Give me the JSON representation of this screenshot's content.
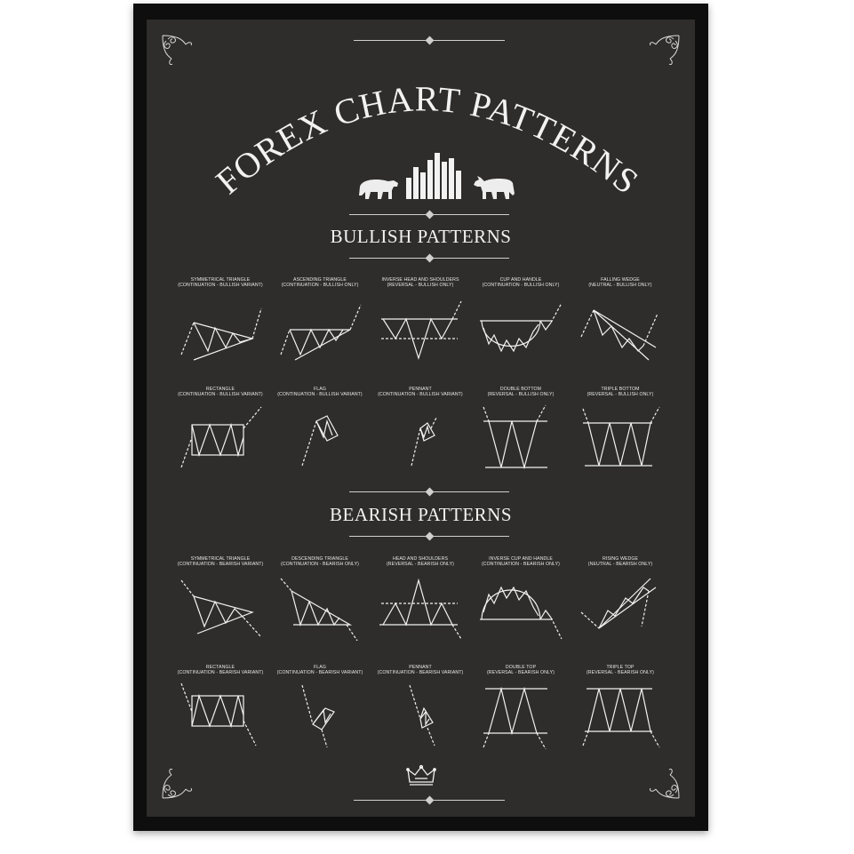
{
  "poster": {
    "title": "FOREX CHART PATTERNS",
    "colors": {
      "background": "#2e2d2c",
      "frame": "#0e0e0e",
      "ink": "#f2f2f2"
    },
    "icons": [
      "bear-icon",
      "bar-chart-icon",
      "bull-icon",
      "crown-icon",
      "corner-ornament-icon"
    ]
  },
  "bullish": {
    "heading": "BULLISH PATTERNS",
    "patterns": [
      {
        "id": "sym-triangle",
        "name": "SYMMETRICAL TRIANGLE",
        "note": "(CONTINUATION - BULLISH VARIANT)"
      },
      {
        "id": "asc-triangle",
        "name": "ASCENDING TRIANGLE",
        "note": "(CONTINUATION - BULLISH ONLY)"
      },
      {
        "id": "inv-hs",
        "name": "INVERSE HEAD AND SHOULDERS",
        "note": "(REVERSAL - BULLISH ONLY)"
      },
      {
        "id": "cup-handle",
        "name": "CUP AND HANDLE",
        "note": "(CONTINUATION - BULLISH ONLY)"
      },
      {
        "id": "falling-wedge",
        "name": "FALLING WEDGE",
        "note": "(NEUTRAL - BULLISH ONLY)"
      },
      {
        "id": "rectangle",
        "name": "RECTANGLE",
        "note": "(CONTINUATION - BULLISH VARIANT)"
      },
      {
        "id": "flag",
        "name": "FLAG",
        "note": "(CONTINUATION - BULLISH VARIANT)"
      },
      {
        "id": "pennant",
        "name": "PENNANT",
        "note": "(CONTINUATION - BULLISH VARIANT)"
      },
      {
        "id": "double-bottom",
        "name": "DOUBLE BOTTOM",
        "note": "(REVERSAL - BULLISH ONLY)"
      },
      {
        "id": "triple-bottom",
        "name": "TRIPLE BOTTOM",
        "note": "(REVERSAL - BULLISH ONLY)"
      }
    ]
  },
  "bearish": {
    "heading": "BEARISH PATTERNS",
    "patterns": [
      {
        "id": "sym-triangle",
        "name": "SYMMETRICAL TRIANGLE",
        "note": "(CONTINUATION - BEARISH VARIANT)"
      },
      {
        "id": "desc-triangle",
        "name": "DESCENDING TRIANGLE",
        "note": "(CONTINUATION - BEARISH ONLY)"
      },
      {
        "id": "hs",
        "name": "HEAD AND SHOULDERS",
        "note": "(REVERSAL - BEARISH ONLY)"
      },
      {
        "id": "inv-cup-handle",
        "name": "INVERSE CUP AND HANDLE",
        "note": "(CONTINUATION - BEARISH ONLY)"
      },
      {
        "id": "rising-wedge",
        "name": "RISING WEDGE",
        "note": "(NEUTRAL - BEARISH ONLY)"
      },
      {
        "id": "rectangle",
        "name": "RECTANGLE",
        "note": "(CONTINUATION - BEARISH VARIANT)"
      },
      {
        "id": "flag",
        "name": "FLAG",
        "note": "(CONTINUATION - BEARISH VARIANT)"
      },
      {
        "id": "pennant",
        "name": "PENNANT",
        "note": "(CONTINUATION - BEARISH VARIANT)"
      },
      {
        "id": "double-top",
        "name": "DOUBLE TOP",
        "note": "(REVERSAL - BEARISH ONLY)"
      },
      {
        "id": "triple-top",
        "name": "TRIPLE TOP",
        "note": "(REVERSAL - BEARISH ONLY)"
      }
    ]
  }
}
